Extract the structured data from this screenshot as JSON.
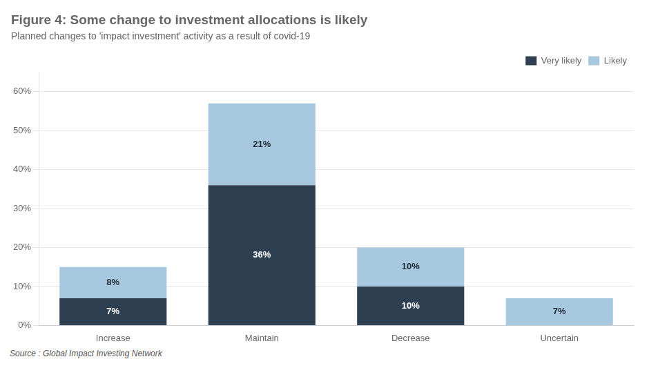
{
  "chart_data": {
    "type": "bar",
    "title": "Figure 4: Some change to investment allocations is likely",
    "subtitle": "Planned changes to 'impact investment' activity as a result of covid-19",
    "source": "Source : Global Impact Investing Network",
    "categories": [
      "Increase",
      "Maintain",
      "Decrease",
      "Uncertain"
    ],
    "series": [
      {
        "name": "Very likely",
        "color": "#2e3f52",
        "values": [
          7,
          36,
          10,
          0
        ],
        "value_labels": [
          "7%",
          "36%",
          "10%",
          null
        ]
      },
      {
        "name": "Likely",
        "color": "#a8c8e0",
        "values": [
          8,
          21,
          10,
          7
        ],
        "value_labels": [
          "8%",
          "21%",
          "10%",
          "7%"
        ]
      }
    ],
    "stacked": true,
    "data_labels": true,
    "ylim": [
      0,
      65
    ],
    "yticks": [
      {
        "value": 0,
        "label": "0%"
      },
      {
        "value": 10,
        "label": "10%"
      },
      {
        "value": 20,
        "label": "20%"
      },
      {
        "value": 30,
        "label": "30%"
      },
      {
        "value": 40,
        "label": "40%"
      },
      {
        "value": 50,
        "label": "50%"
      },
      {
        "value": 60,
        "label": "60%"
      }
    ],
    "grid": true,
    "legend": "upper right"
  }
}
